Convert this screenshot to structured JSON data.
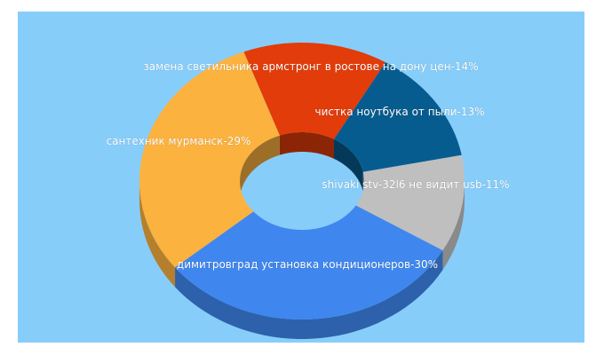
{
  "chart_data": {
    "type": "pie",
    "style": "3d-donut",
    "background": "#87cdfa",
    "slices": [
      {
        "label": "замена светильника армстронг в ростове на дону цен-14%",
        "value": 14,
        "color": "#e23c0a"
      },
      {
        "label": "чистка ноутбука от пыли-13%",
        "value": 13,
        "color": "#075c8f"
      },
      {
        "label": "shivaki stv-32l6 не видит usb-11%",
        "value": 11,
        "color": "#bfbfbf"
      },
      {
        "label": "димитровград установка кондиционеров-30%",
        "value": 30,
        "color": "#3f87ee"
      },
      {
        "label": "сантехник мурманск-29%",
        "value": 29,
        "color": "#fbb23f"
      }
    ]
  }
}
